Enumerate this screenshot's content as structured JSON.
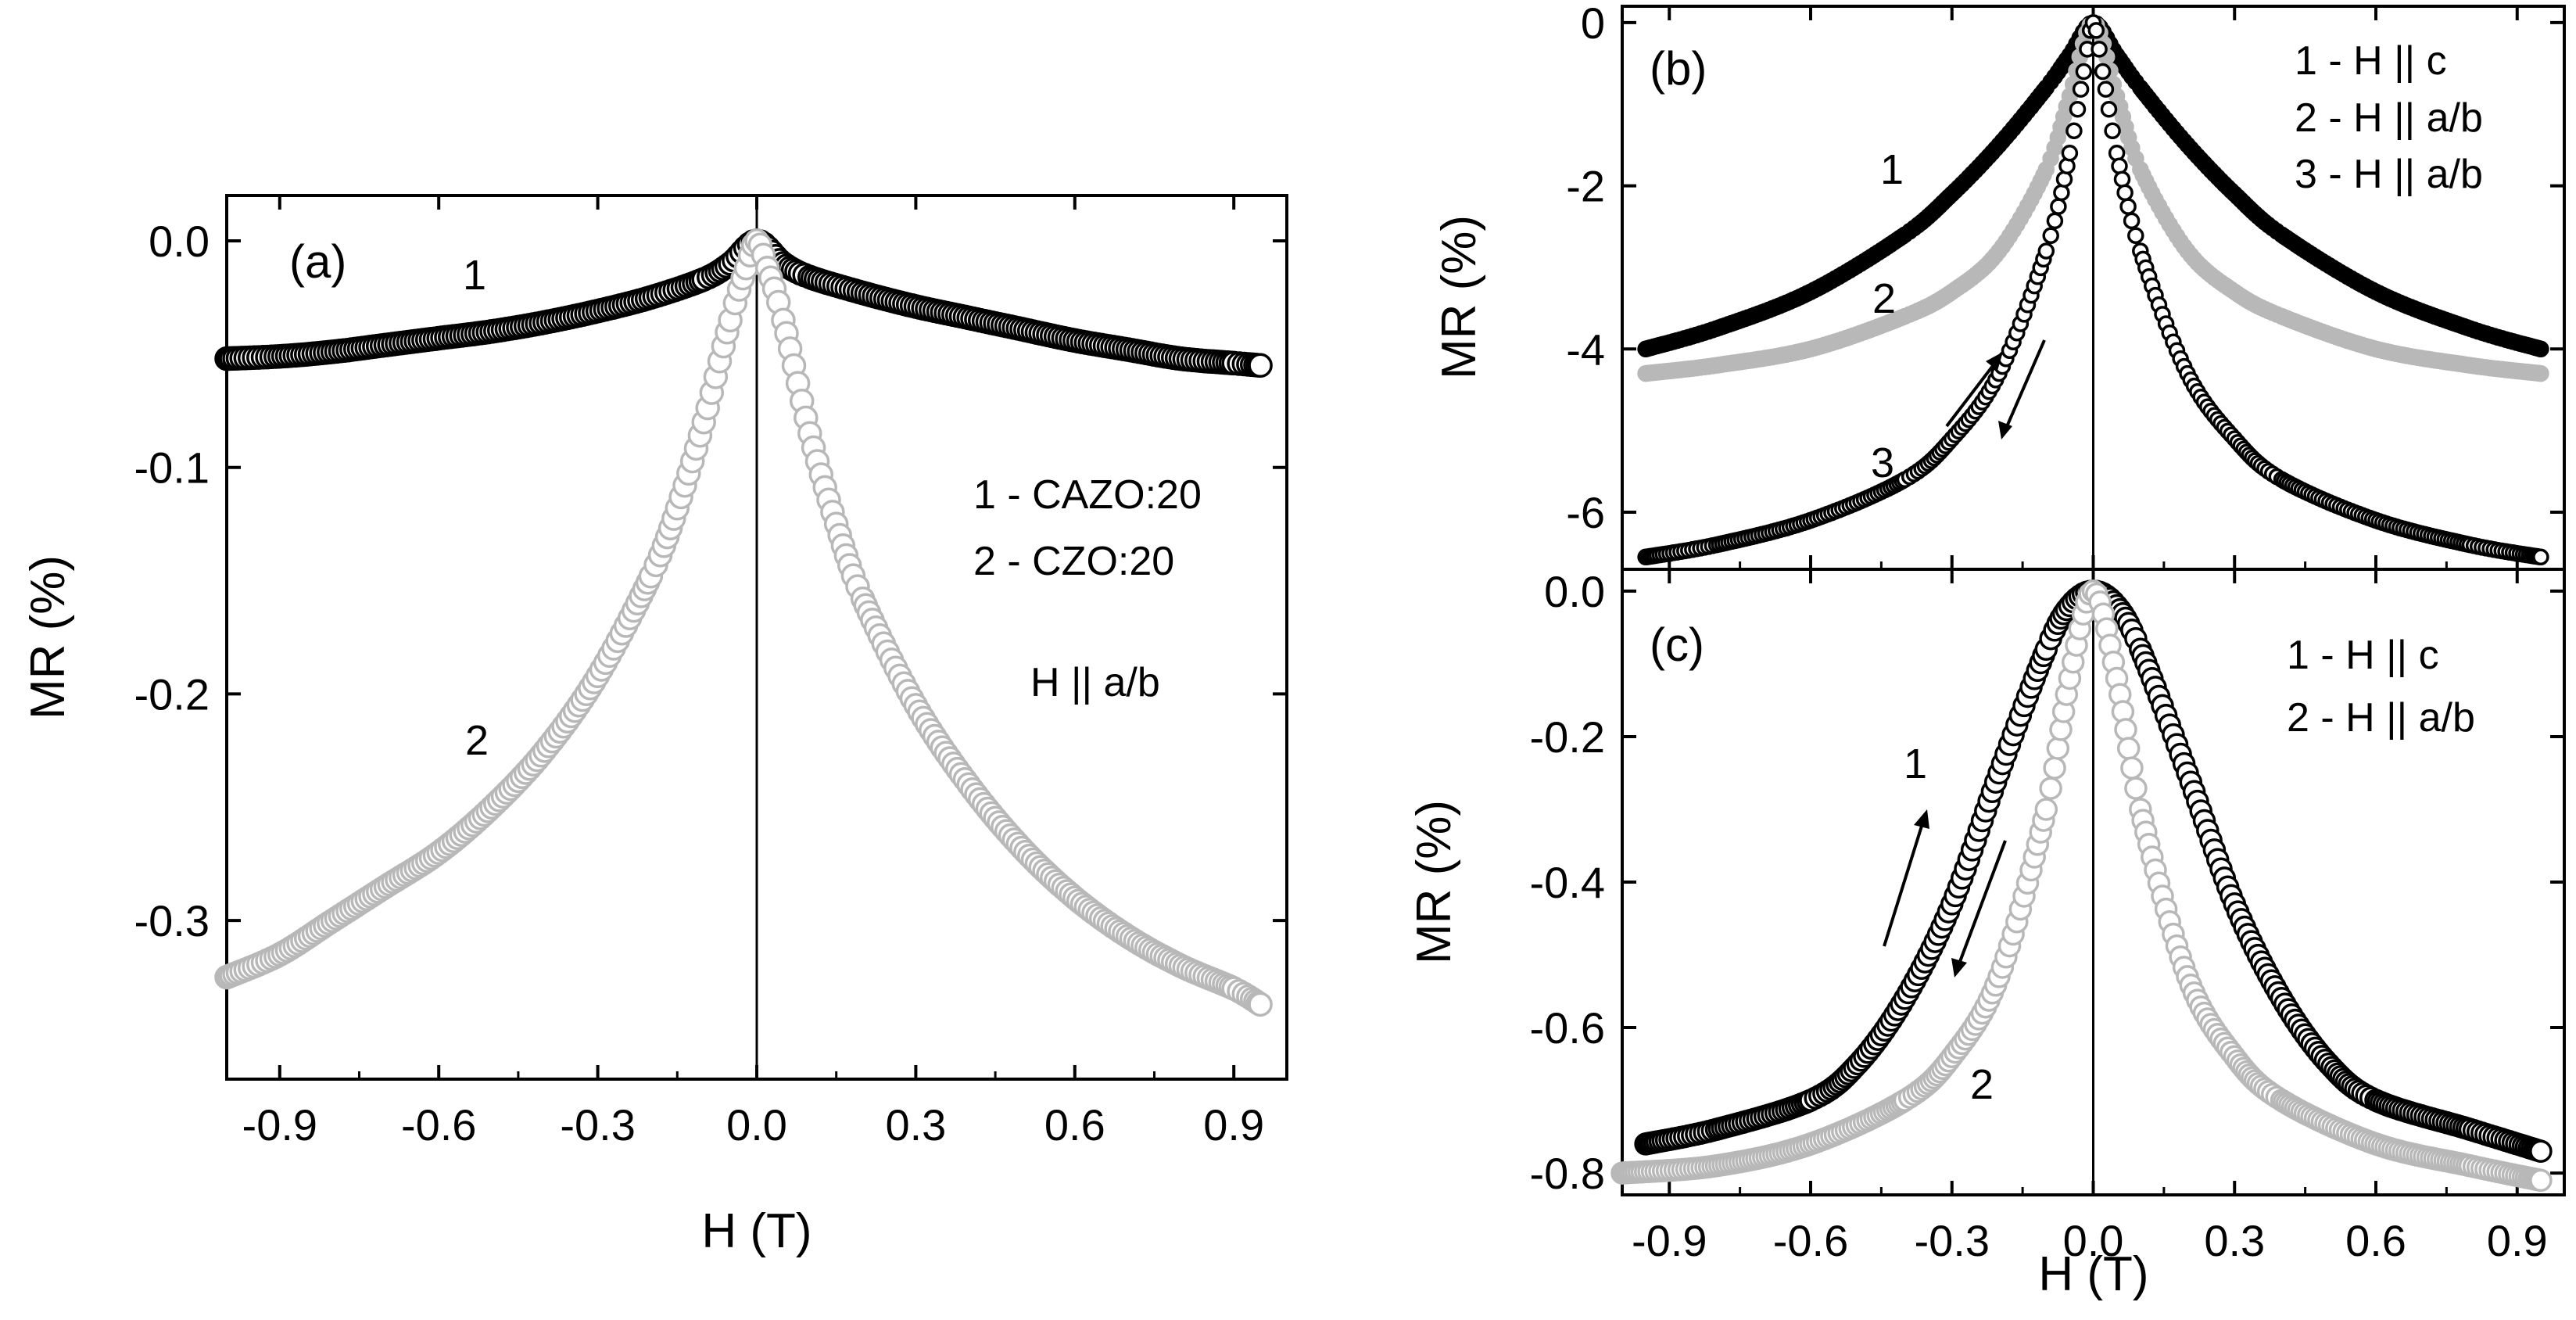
{
  "chart_data": [
    {
      "panel": "a",
      "type": "scatter",
      "title": "",
      "panel_label": "(a)",
      "xlabel": "H (T)",
      "ylabel": "MR (%)",
      "xlim": [
        -1.0,
        1.0
      ],
      "ylim": [
        -0.37,
        0.02
      ],
      "xticks": [
        -0.9,
        -0.6,
        -0.3,
        0.0,
        0.3,
        0.6,
        0.9
      ],
      "xtick_labels": [
        "-0.9",
        "-0.6",
        "-0.3",
        "0.0",
        "0.3",
        "0.6",
        "0.9"
      ],
      "yticks": [
        0.0,
        -0.1,
        -0.2,
        -0.3
      ],
      "ytick_labels": [
        "0.0",
        "-0.1",
        "-0.2",
        "-0.3"
      ],
      "legend": [
        "1 - CAZO:20",
        "2 - CZO:20",
        "H || a/b"
      ],
      "legend_position": "right-middle",
      "series": [
        {
          "name": "1",
          "label": "1",
          "color": "#000000",
          "fill": "#ffffff",
          "x": [
            -1.0,
            -0.9,
            -0.8,
            -0.7,
            -0.6,
            -0.5,
            -0.4,
            -0.3,
            -0.2,
            -0.1,
            -0.05,
            0.0,
            0.05,
            0.1,
            0.2,
            0.3,
            0.4,
            0.5,
            0.6,
            0.7,
            0.8,
            0.9,
            0.95
          ],
          "y": [
            -0.052,
            -0.051,
            -0.049,
            -0.046,
            -0.043,
            -0.04,
            -0.036,
            -0.031,
            -0.025,
            -0.017,
            -0.01,
            0.0,
            -0.01,
            -0.016,
            -0.023,
            -0.029,
            -0.034,
            -0.039,
            -0.044,
            -0.048,
            -0.052,
            -0.054,
            -0.055
          ]
        },
        {
          "name": "2",
          "label": "2",
          "color": "#b8b8b8",
          "fill": "#ffffff",
          "x": [
            -1.0,
            -0.9,
            -0.8,
            -0.7,
            -0.6,
            -0.5,
            -0.4,
            -0.3,
            -0.2,
            -0.15,
            -0.1,
            -0.05,
            -0.02,
            0.0,
            0.02,
            0.05,
            0.1,
            0.15,
            0.2,
            0.3,
            0.4,
            0.5,
            0.6,
            0.7,
            0.8,
            0.9,
            0.95
          ],
          "y": [
            -0.325,
            -0.315,
            -0.3,
            -0.285,
            -0.27,
            -0.25,
            -0.225,
            -0.192,
            -0.148,
            -0.118,
            -0.08,
            -0.035,
            -0.012,
            0.0,
            -0.012,
            -0.035,
            -0.085,
            -0.125,
            -0.158,
            -0.205,
            -0.24,
            -0.268,
            -0.29,
            -0.307,
            -0.32,
            -0.33,
            -0.337
          ]
        }
      ]
    },
    {
      "panel": "b",
      "type": "scatter",
      "title": "",
      "panel_label": "(b)",
      "xlabel": "",
      "ylabel": "MR (%)",
      "xlim": [
        -1.0,
        1.0
      ],
      "ylim": [
        -6.7,
        0.2
      ],
      "xticks": [
        -0.9,
        -0.6,
        -0.3,
        0.0,
        0.3,
        0.6,
        0.9
      ],
      "xtick_labels": [],
      "yticks": [
        0,
        -2,
        -4,
        -6
      ],
      "ytick_labels": [
        "0",
        "-2",
        "-4",
        "-6"
      ],
      "legend": [
        "1 - H || c",
        "2 - H || a/b",
        "3 - H || a/b"
      ],
      "legend_position": "top-right",
      "series": [
        {
          "name": "1",
          "label": "1",
          "color": "#000000",
          "fill": "#000000",
          "x": [
            -0.95,
            -0.8,
            -0.6,
            -0.4,
            -0.3,
            -0.2,
            -0.1,
            -0.05,
            0.0,
            0.05,
            0.1,
            0.2,
            0.3,
            0.4,
            0.6,
            0.8,
            0.95
          ],
          "y": [
            -4.0,
            -3.75,
            -3.3,
            -2.6,
            -2.1,
            -1.5,
            -0.8,
            -0.4,
            0.0,
            -0.4,
            -0.8,
            -1.5,
            -2.1,
            -2.6,
            -3.3,
            -3.75,
            -4.0
          ]
        },
        {
          "name": "2",
          "label": "2",
          "color": "#b8b8b8",
          "fill": "#b8b8b8",
          "x": [
            -0.95,
            -0.8,
            -0.6,
            -0.4,
            -0.3,
            -0.2,
            -0.1,
            -0.05,
            0.0,
            0.05,
            0.1,
            0.2,
            0.3,
            0.4,
            0.6,
            0.8,
            0.95
          ],
          "y": [
            -4.3,
            -4.2,
            -4.0,
            -3.6,
            -3.3,
            -2.8,
            -1.8,
            -0.9,
            0.0,
            -0.9,
            -1.8,
            -2.8,
            -3.3,
            -3.6,
            -4.0,
            -4.2,
            -4.3
          ]
        },
        {
          "name": "3",
          "label": "3",
          "color": "#000000",
          "fill": "#ffffff",
          "x": [
            -0.95,
            -0.8,
            -0.6,
            -0.4,
            -0.3,
            -0.2,
            -0.1,
            -0.05,
            -0.02,
            0.0,
            0.02,
            0.05,
            0.1,
            0.2,
            0.3,
            0.4,
            0.6,
            0.8,
            0.95
          ],
          "y": [
            -6.55,
            -6.4,
            -6.1,
            -5.6,
            -5.1,
            -4.3,
            -2.8,
            -1.6,
            -0.6,
            0.0,
            -0.6,
            -1.6,
            -2.8,
            -4.3,
            -5.1,
            -5.6,
            -6.1,
            -6.4,
            -6.55
          ]
        }
      ],
      "curve_labels": [
        "1",
        "2",
        "3"
      ]
    },
    {
      "panel": "c",
      "type": "scatter",
      "title": "",
      "panel_label": "(c)",
      "xlabel": "H (T)",
      "ylabel": "MR (%)",
      "xlim": [
        -1.0,
        1.0
      ],
      "ylim": [
        -0.83,
        0.03
      ],
      "xticks": [
        -0.9,
        -0.6,
        -0.3,
        0.0,
        0.3,
        0.6,
        0.9
      ],
      "xtick_labels": [
        "-0.9",
        "-0.6",
        "-0.3",
        "0.0",
        "0.3",
        "0.6",
        "0.9"
      ],
      "yticks": [
        0.0,
        -0.2,
        -0.4,
        -0.6,
        -0.8
      ],
      "ytick_labels": [
        "0.0",
        "-0.2",
        "-0.4",
        "-0.6",
        "-0.8"
      ],
      "legend": [
        "1 - H || c",
        "2 - H || a/b"
      ],
      "legend_position": "top-right",
      "series": [
        {
          "name": "1",
          "label": "1",
          "color": "#000000",
          "fill": "#ffffff",
          "x": [
            -0.95,
            -0.8,
            -0.6,
            -0.5,
            -0.4,
            -0.3,
            -0.2,
            -0.1,
            -0.05,
            0.0,
            0.05,
            0.1,
            0.2,
            0.3,
            0.4,
            0.5,
            0.6,
            0.8,
            0.95
          ],
          "y": [
            -0.76,
            -0.74,
            -0.7,
            -0.65,
            -0.56,
            -0.43,
            -0.25,
            -0.08,
            -0.02,
            0.0,
            -0.02,
            -0.08,
            -0.25,
            -0.43,
            -0.56,
            -0.65,
            -0.7,
            -0.74,
            -0.77
          ]
        },
        {
          "name": "2",
          "label": "2",
          "color": "#b8b8b8",
          "fill": "#ffffff",
          "x": [
            -1.0,
            -0.8,
            -0.6,
            -0.4,
            -0.3,
            -0.2,
            -0.1,
            -0.05,
            0.0,
            0.05,
            0.1,
            0.2,
            0.3,
            0.4,
            0.6,
            0.8,
            0.95
          ],
          "y": [
            -0.8,
            -0.79,
            -0.76,
            -0.7,
            -0.64,
            -0.53,
            -0.3,
            -0.12,
            0.0,
            -0.12,
            -0.3,
            -0.53,
            -0.64,
            -0.7,
            -0.76,
            -0.79,
            -0.81
          ]
        }
      ],
      "curve_labels": [
        "1",
        "2"
      ]
    }
  ]
}
